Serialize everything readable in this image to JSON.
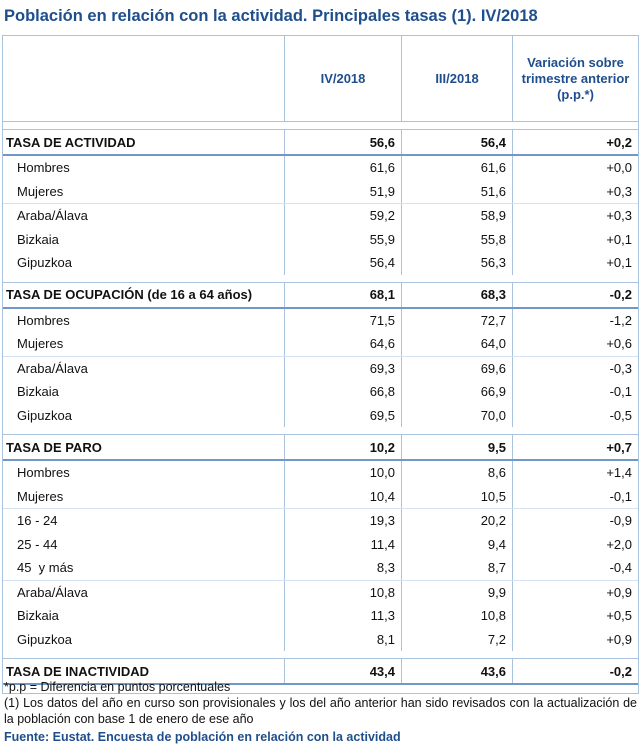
{
  "title": "Población en relación con la actividad. Principales tasas (1). IV/2018",
  "table": {
    "header": [
      "IV/2018",
      "III/2018",
      "Variación sobre trimestre anterior (p.p.*)"
    ],
    "groups": [
      {
        "heading": [
          "TASA DE ACTIVIDAD",
          "56,6",
          "56,4",
          "+0,2"
        ],
        "sections": [
          [
            [
              "Hombres",
              "61,6",
              "61,6",
              "+0,0"
            ],
            [
              "Mujeres",
              "51,9",
              "51,6",
              "+0,3"
            ]
          ],
          [
            [
              "Araba/Álava",
              "59,2",
              "58,9",
              "+0,3"
            ],
            [
              "Bizkaia",
              "55,9",
              "55,8",
              "+0,1"
            ],
            [
              "Gipuzkoa",
              "56,4",
              "56,3",
              "+0,1"
            ]
          ]
        ]
      },
      {
        "heading": [
          "TASA DE OCUPACIÓN (de 16 a 64 años)",
          "68,1",
          "68,3",
          "-0,2"
        ],
        "sections": [
          [
            [
              "Hombres",
              "71,5",
              "72,7",
              "-1,2"
            ],
            [
              "Mujeres",
              "64,6",
              "64,0",
              "+0,6"
            ]
          ],
          [
            [
              "Araba/Álava",
              "69,3",
              "69,6",
              "-0,3"
            ],
            [
              "Bizkaia",
              "66,8",
              "66,9",
              "-0,1"
            ],
            [
              "Gipuzkoa",
              "69,5",
              "70,0",
              "-0,5"
            ]
          ]
        ]
      },
      {
        "heading": [
          "TASA DE PARO",
          "10,2",
          "9,5",
          "+0,7"
        ],
        "sections": [
          [
            [
              "Hombres",
              "10,0",
              "8,6",
              "+1,4"
            ],
            [
              "Mujeres",
              "10,4",
              "10,5",
              "-0,1"
            ]
          ],
          [
            [
              "16 - 24",
              "19,3",
              "20,2",
              "-0,9"
            ],
            [
              "25 - 44",
              "11,4",
              "9,4",
              "+2,0"
            ],
            [
              "45  y más",
              "8,3",
              "8,7",
              "-0,4"
            ]
          ],
          [
            [
              "Araba/Álava",
              "10,8",
              "9,9",
              "+0,9"
            ],
            [
              "Bizkaia",
              "11,3",
              "10,8",
              "+0,5"
            ],
            [
              "Gipuzkoa",
              "8,1",
              "7,2",
              "+0,9"
            ]
          ]
        ]
      },
      {
        "heading": [
          "TASA DE INACTIVIDAD",
          "43,4",
          "43,6",
          "-0,2"
        ],
        "sections": []
      }
    ]
  },
  "footnotes": [
    "*p.p = Diferencia en puntos porcentuales",
    "(1) Los datos del año en curso son provisionales y los del año anterior han sido revisados con la actualización de la población con base 1 de enero de ese año"
  ],
  "source": "Fuente: Eustat. Encuesta de población en relación con la actividad"
}
